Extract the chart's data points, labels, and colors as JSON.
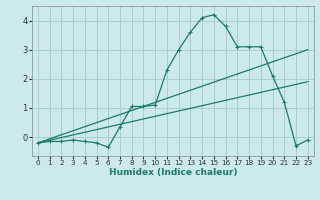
{
  "xlabel": "Humidex (Indice chaleur)",
  "background_color": "#cdeaea",
  "grid_color": "#aacfcf",
  "line_color": "#1a7a6e",
  "xlim": [
    -0.5,
    23.5
  ],
  "ylim": [
    -0.65,
    4.5
  ],
  "xticks": [
    0,
    1,
    2,
    3,
    4,
    5,
    6,
    7,
    8,
    9,
    10,
    11,
    12,
    13,
    14,
    15,
    16,
    17,
    18,
    19,
    20,
    21,
    22,
    23
  ],
  "yticks": [
    0,
    1,
    2,
    3,
    4
  ],
  "line1_x": [
    0,
    1,
    2,
    3,
    4,
    5,
    6,
    7,
    8,
    9,
    10,
    11,
    12,
    13,
    14,
    15,
    16,
    17,
    18,
    19,
    20,
    21,
    22,
    23
  ],
  "line1_y": [
    -0.2,
    -0.15,
    -0.15,
    -0.1,
    -0.15,
    -0.2,
    -0.35,
    0.35,
    1.05,
    1.05,
    1.1,
    2.3,
    3.0,
    3.6,
    4.1,
    4.2,
    3.8,
    3.1,
    3.1,
    3.1,
    2.1,
    1.2,
    -0.3,
    -0.1
  ],
  "line2_x": [
    0,
    23
  ],
  "line2_y": [
    -0.2,
    3.0
  ],
  "line3_x": [
    0,
    23
  ],
  "line3_y": [
    -0.2,
    1.9
  ]
}
